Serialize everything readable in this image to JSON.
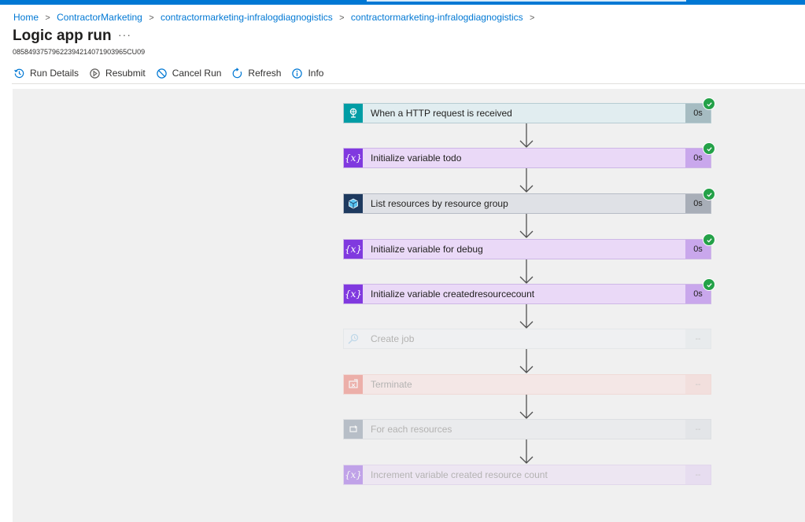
{
  "breadcrumb": {
    "items": [
      "Home",
      "ContractorMarketing",
      "contractormarketing-infralogdiagnogistics",
      "contractormarketing-infralogdiagnogistics"
    ]
  },
  "page": {
    "title": "Logic app run",
    "more": "···",
    "run_id": "08584937579622394214071903965CU09"
  },
  "toolbar": {
    "run_details": "Run Details",
    "resubmit": "Resubmit",
    "cancel_run": "Cancel Run",
    "refresh": "Refresh",
    "info": "Info"
  },
  "colors": {
    "accent": "#0078d4",
    "success": "#24a148",
    "variable": "#8039df",
    "http": "#009da5",
    "arm": "#1e3a5f"
  },
  "steps": [
    {
      "label": "When a HTTP request is received",
      "duration": "0s",
      "icon": "http-request-icon",
      "status": "succeeded"
    },
    {
      "label": "Initialize variable todo",
      "duration": "0s",
      "icon": "variable-icon",
      "status": "succeeded"
    },
    {
      "label": "List resources by resource group",
      "duration": "0s",
      "icon": "resource-manager-icon",
      "status": "succeeded"
    },
    {
      "label": "Initialize variable for debug",
      "duration": "0s",
      "icon": "variable-icon",
      "status": "succeeded"
    },
    {
      "label": "Initialize variable createdresourcecount",
      "duration": "0s",
      "icon": "variable-icon",
      "status": "succeeded"
    },
    {
      "label": "Create job",
      "duration": "--",
      "icon": "create-job-icon",
      "status": "skipped"
    },
    {
      "label": "Terminate",
      "duration": "--",
      "icon": "terminate-icon",
      "status": "skipped"
    },
    {
      "label": "For each resources",
      "duration": "--",
      "icon": "foreach-loop-icon",
      "status": "skipped"
    },
    {
      "label": "Increment variable created resource count",
      "duration": "--",
      "icon": "variable-icon",
      "status": "skipped"
    }
  ]
}
